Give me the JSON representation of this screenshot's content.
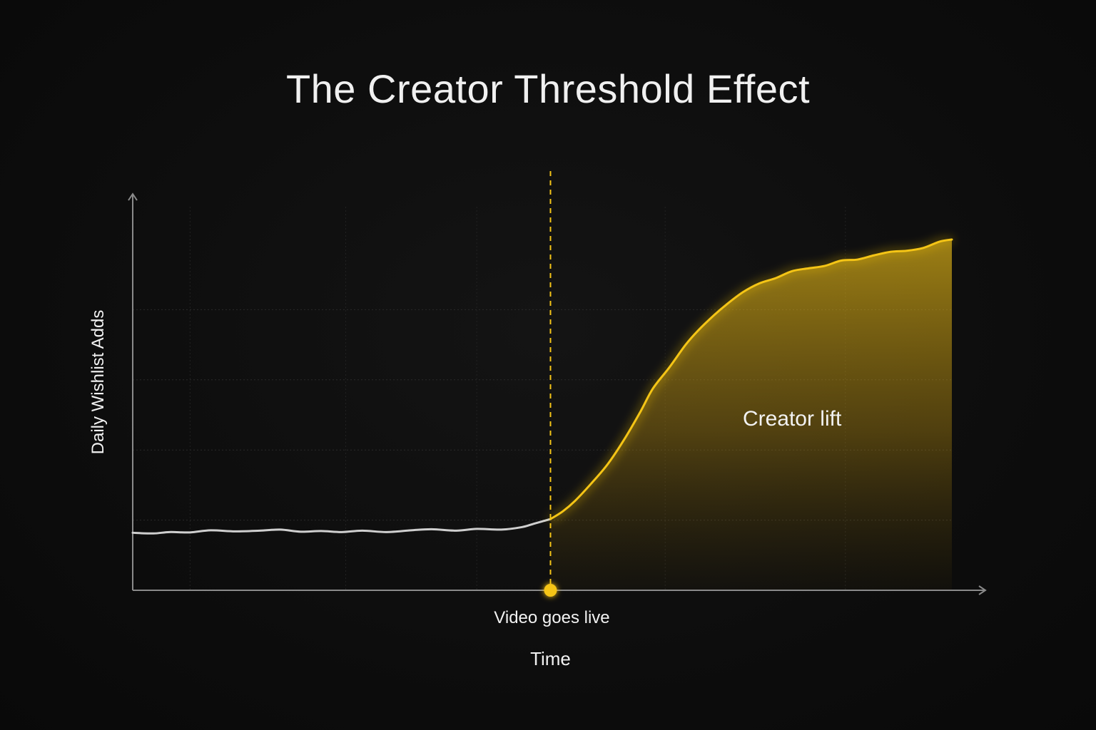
{
  "chart_data": {
    "type": "line",
    "title": "The Creator Threshold Effect",
    "xlabel": "Time",
    "ylabel": "Daily Wishlist Adds",
    "xlim": [
      0,
      100
    ],
    "ylim": [
      0,
      100
    ],
    "grid": true,
    "event": {
      "x": 51,
      "label": "Video goes live"
    },
    "annotations": [
      {
        "text": "Creator lift",
        "x": 80.5,
        "y": 50
      }
    ],
    "colors": {
      "baseline": "#cfcfcf",
      "lift": "#f5c518",
      "axis": "#8a8a8a",
      "background": "#0d0d0d"
    },
    "series": [
      {
        "segment": "before",
        "x": [
          0,
          2.5,
          4.5,
          7,
          9.5,
          12.5,
          15.5,
          18,
          20.5,
          23,
          25.5,
          28,
          31,
          34,
          36.5,
          39.5,
          42,
          45,
          47.5,
          49,
          51
        ],
        "y": [
          16.4,
          16.2,
          16.6,
          16.5,
          17.1,
          16.8,
          17.0,
          17.3,
          16.7,
          16.9,
          16.6,
          17.0,
          16.6,
          17.1,
          17.4,
          17.0,
          17.5,
          17.3,
          18.0,
          19.0,
          20.3
        ]
      },
      {
        "segment": "after",
        "x": [
          51,
          52.5,
          54,
          56,
          58,
          60,
          62,
          63.5,
          65.5,
          67.5,
          69,
          71,
          72.5,
          74.5,
          76.5,
          78.5,
          80.5,
          82.5,
          84.5,
          86.5,
          88.5,
          90.5,
          92.5,
          94.5,
          96.5,
          98.5,
          100
        ],
        "y": [
          20.3,
          22.5,
          25.5,
          30.5,
          36.0,
          43.0,
          51.0,
          57.5,
          63.5,
          70.0,
          74.0,
          78.5,
          81.5,
          85.0,
          87.5,
          89.0,
          91.0,
          91.8,
          92.5,
          94.0,
          94.3,
          95.5,
          96.5,
          96.8,
          97.6,
          99.4,
          100
        ]
      }
    ]
  }
}
